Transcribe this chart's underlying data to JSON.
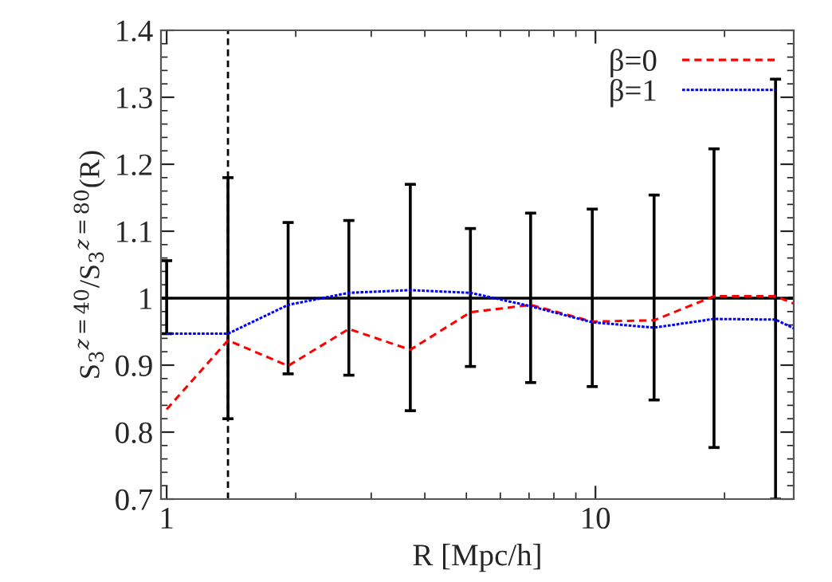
{
  "chart_data": {
    "type": "line",
    "xlabel": "R [Mpc/h]",
    "ylabel": "S$_{3}$$^{z=40}$/S$_{3}$$^{z=80}$(R)",
    "log": "x",
    "xlim": [
      0.97,
      29
    ],
    "xticks": [
      1,
      10
    ],
    "ylim": [
      0.7,
      1.4
    ],
    "yticks": [
      0.7,
      0.8,
      0.9,
      {
        "value": 1.0,
        "label": "1"
      },
      1.1,
      1.2,
      1.3,
      1.4
    ],
    "legend": "top right",
    "grid": false,
    "series": [
      {
        "name": "β=0",
        "color": "#ff0000",
        "line_style": "dashed",
        "x": [
          1,
          1.39,
          1.92,
          2.66,
          3.7,
          5.11,
          7.06,
          9.83,
          13.7,
          18.9,
          26.3,
          29
        ],
        "values": [
          0.834,
          0.937,
          0.899,
          0.954,
          0.923,
          0.979,
          0.99,
          0.965,
          0.967,
          1.003,
          1.003,
          0.992
        ]
      },
      {
        "name": "β=1",
        "color": "#0000ff",
        "line_style": "dotted",
        "x": [
          1,
          1.39,
          1.92,
          2.66,
          3.7,
          5.11,
          7.06,
          9.83,
          13.7,
          18.9,
          26.3,
          29
        ],
        "values": [
          0.947,
          0.947,
          0.99,
          1.008,
          1.012,
          1.008,
          0.988,
          0.964,
          0.956,
          0.969,
          0.968,
          0.955
        ]
      },
      {
        "type": "line",
        "line_style": "solid",
        "color": "#000000",
        "x": [
          0.97,
          1,
          1.39,
          1.92,
          2.66,
          3.7,
          5.11,
          7.06,
          9.83,
          13.7,
          18.9,
          26.3,
          29
        ],
        "values": [
          1,
          1,
          1,
          1,
          1,
          1,
          1,
          1,
          1,
          1,
          1,
          1,
          1
        ],
        "errors": [
          null,
          [
            0.947,
            1.056
          ],
          [
            0.82,
            1.18
          ],
          [
            0.887,
            1.113
          ],
          [
            0.885,
            1.116
          ],
          [
            0.832,
            1.17
          ],
          [
            0.898,
            1.104
          ],
          [
            0.874,
            1.127
          ],
          [
            0.868,
            1.133
          ],
          [
            0.848,
            1.154
          ],
          [
            0.777,
            1.223
          ],
          [
            0.7,
            1.327
          ],
          null
        ]
      }
    ],
    "ref_lines": [
      {
        "axis": "x",
        "value": 1.39,
        "color": "#000000",
        "line_style": "dashed"
      }
    ]
  }
}
